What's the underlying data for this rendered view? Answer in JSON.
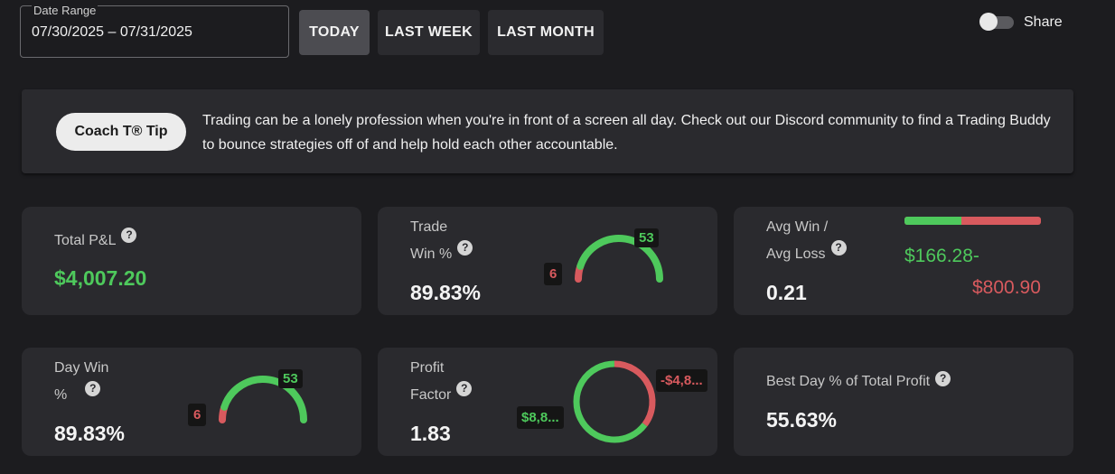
{
  "date_range": {
    "label": "Date Range",
    "value": "07/30/2025 – 07/31/2025"
  },
  "range_buttons": {
    "today": "TODAY",
    "last_week": "LAST WEEK",
    "last_month": "LAST MONTH",
    "active": "today"
  },
  "share": {
    "label": "Share",
    "enabled": false
  },
  "tip": {
    "button": "Coach T® Tip",
    "text": "Trading can be a lonely profession when you're in front of a screen all day. Check out our Discord community to find a Trading Buddy to bounce strategies off of and help hold each other accountable."
  },
  "cards": {
    "total_pl": {
      "label": "Total P&L",
      "value": "$4,007.20"
    },
    "trade_win": {
      "label_line1": "Trade",
      "label_line2": "Win %",
      "value": "89.83%",
      "wins": "53",
      "losses": "6",
      "win_fraction": 0.8983
    },
    "avg_win_loss": {
      "label_line1": "Avg Win /",
      "label_line2": "Avg Loss",
      "value": "0.21",
      "avg_win": "$166.28-",
      "avg_loss": "$800.90",
      "win_fraction": 0.42
    },
    "day_win": {
      "label_line1": "Day Win",
      "label_line2": "%",
      "value": "89.83%",
      "wins": "53",
      "losses": "6",
      "win_fraction": 0.8983
    },
    "profit_factor": {
      "label_line1": "Profit",
      "label_line2": "Factor",
      "value": "1.83",
      "gross_profit": "$8,8...",
      "gross_loss": "-$4,8...",
      "profit_fraction": 0.647
    },
    "best_day": {
      "label": "Best Day % of Total Profit",
      "value": "55.63%"
    }
  },
  "help_symbol": "?",
  "colors": {
    "green": "#4ec95c",
    "red": "#d85a5e",
    "card": "#2a2a2e",
    "background": "#1c1c1f"
  }
}
